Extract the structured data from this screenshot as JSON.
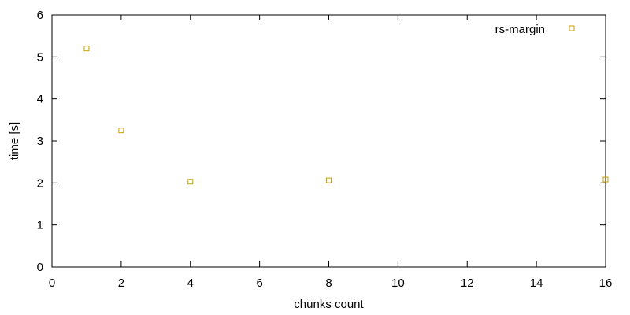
{
  "chart_data": {
    "type": "scatter",
    "title": "",
    "xlabel": "chunks count",
    "ylabel": "time [s]",
    "xlim": [
      0,
      16
    ],
    "ylim": [
      0,
      6
    ],
    "xticks": [
      0,
      2,
      4,
      6,
      8,
      10,
      12,
      14,
      16
    ],
    "yticks": [
      0,
      1,
      2,
      3,
      4,
      5,
      6
    ],
    "grid": false,
    "legend_position": "top-right",
    "series": [
      {
        "name": "rs-margin",
        "color": "#c8a000",
        "marker": "open-square",
        "points": [
          {
            "x": 1,
            "y": 5.2
          },
          {
            "x": 2,
            "y": 3.25
          },
          {
            "x": 4,
            "y": 2.03
          },
          {
            "x": 8,
            "y": 2.06
          },
          {
            "x": 16,
            "y": 2.08
          }
        ]
      }
    ]
  }
}
